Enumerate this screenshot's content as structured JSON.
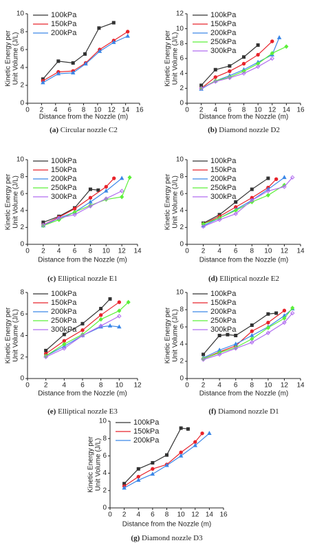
{
  "chart_data": [
    {
      "type": "line",
      "caption_label": "(a)",
      "caption": "Circular nozzle C2",
      "xlabel": "Distance from the Nozzle (m)",
      "ylabel": [
        "Kinetic Energy per",
        "Unit Volume (J/L)"
      ],
      "xlim": [
        0,
        16
      ],
      "xticks": [
        0,
        2,
        4,
        6,
        8,
        10,
        12,
        14,
        16
      ],
      "ylim": [
        0,
        10
      ],
      "yticks": [
        0,
        2,
        4,
        6,
        8,
        10
      ],
      "legend": "upper left",
      "series": [
        {
          "name": "100kPa",
          "color": "#333333",
          "x": [
            2.2,
            4.4,
            6.5,
            8.2,
            10.2,
            12.3
          ],
          "values": [
            2.7,
            4.7,
            4.5,
            5.5,
            8.4,
            9.0
          ]
        },
        {
          "name": "150kPa",
          "color": "#e8232b",
          "x": [
            2.2,
            4.4,
            6.5,
            8.3,
            10.3,
            12.3,
            14.3
          ],
          "values": [
            2.5,
            3.5,
            3.6,
            4.5,
            6.0,
            7.0,
            8.0
          ]
        },
        {
          "name": "200kPa",
          "color": "#3a87e8",
          "x": [
            2.2,
            4.4,
            6.5,
            8.3,
            10.3,
            12.3,
            14.3
          ],
          "values": [
            2.3,
            3.3,
            3.4,
            4.4,
            5.8,
            6.8,
            7.5
          ]
        }
      ]
    },
    {
      "type": "line",
      "caption_label": "(b)",
      "caption": "Diamond nozzle D2",
      "xlabel": "Distance from the Nozzle (m)",
      "ylabel": [
        "Kinetic Energy per",
        "Unit Volume (J/L)"
      ],
      "xlim": [
        0,
        16
      ],
      "xticks": [
        0,
        2,
        4,
        6,
        8,
        10,
        12,
        14,
        16
      ],
      "ylim": [
        0,
        12
      ],
      "yticks": [
        0,
        2,
        4,
        6,
        8,
        10,
        12
      ],
      "legend": "upper left",
      "series": [
        {
          "name": "100kPa",
          "color": "#333333",
          "x": [
            2,
            4,
            6,
            8,
            10
          ],
          "values": [
            2.4,
            4.5,
            5.0,
            6.2,
            7.8
          ]
        },
        {
          "name": "150kPa",
          "color": "#e8232b",
          "x": [
            2,
            4,
            6,
            8,
            10,
            12
          ],
          "values": [
            2.0,
            3.5,
            4.3,
            5.3,
            6.5,
            8.3
          ]
        },
        {
          "name": "200kPa",
          "color": "#3a87e8",
          "x": [
            2,
            4,
            6,
            8,
            10,
            12,
            13
          ],
          "values": [
            1.9,
            3.0,
            3.7,
            4.5,
            5.5,
            6.5,
            8.8
          ]
        },
        {
          "name": "250kPa",
          "color": "#5cf03a",
          "x": [
            2,
            4,
            6,
            8,
            10,
            12,
            14
          ],
          "values": [
            2.0,
            3.0,
            3.5,
            4.3,
            5.3,
            6.7,
            7.6
          ]
        },
        {
          "name": "300kPa",
          "color": "#b06cf0",
          "x": [
            2,
            4,
            6,
            8,
            10,
            12
          ],
          "values": [
            2.0,
            2.9,
            3.4,
            4.0,
            4.9,
            6.0
          ]
        }
      ]
    },
    {
      "type": "line",
      "caption_label": "(c)",
      "caption": "Elliptical nozzle E1",
      "xlabel": "Distance from the Nozzle (m)",
      "ylabel": [
        "Kinetic Energy per",
        "Unit Volume (J/L)"
      ],
      "xlim": [
        0,
        14
      ],
      "xticks": [
        0,
        2,
        4,
        6,
        8,
        10,
        12,
        14
      ],
      "ylim": [
        0,
        10
      ],
      "yticks": [
        0,
        2,
        4,
        6,
        8,
        10
      ],
      "legend": "upper left",
      "series": [
        {
          "name": "100kPa",
          "color": "#333333",
          "x": [
            2,
            4,
            6,
            8,
            9
          ],
          "values": [
            2.6,
            3.3,
            4.3,
            6.5,
            6.4
          ]
        },
        {
          "name": "150kPa",
          "color": "#e8232b",
          "x": [
            2,
            4,
            6,
            8,
            10,
            11
          ],
          "values": [
            2.3,
            3.2,
            4.2,
            5.5,
            6.8,
            7.8
          ]
        },
        {
          "name": "200kPa",
          "color": "#3a87e8",
          "x": [
            2,
            4,
            6,
            8,
            10,
            12
          ],
          "values": [
            2.2,
            3.1,
            3.8,
            5.0,
            6.3,
            7.8
          ]
        },
        {
          "name": "250kPa",
          "color": "#5cf03a",
          "x": [
            2,
            4,
            6,
            8,
            10,
            12,
            13
          ],
          "values": [
            2.2,
            2.9,
            3.8,
            4.6,
            5.3,
            5.6,
            7.9
          ]
        },
        {
          "name": "300kPa",
          "color": "#b06cf0",
          "x": [
            2,
            4,
            6,
            8,
            10,
            12
          ],
          "values": [
            2.3,
            3.1,
            3.5,
            4.5,
            5.4,
            6.3
          ]
        }
      ]
    },
    {
      "type": "line",
      "caption_label": "(d)",
      "caption": "Elliptical nozzle E2",
      "xlabel": "Distance from the Nozzle (m)",
      "ylabel": [
        "Kinetic Energy per",
        "Unit Volume (J/L)"
      ],
      "xlim": [
        0,
        14
      ],
      "xticks": [
        0,
        2,
        4,
        6,
        8,
        10,
        12,
        14
      ],
      "ylim": [
        0,
        10
      ],
      "yticks": [
        0,
        2,
        4,
        6,
        8,
        10
      ],
      "legend": "upper left",
      "series": [
        {
          "name": "100kPa",
          "color": "#333333",
          "x": [
            2,
            4,
            6,
            8,
            10
          ],
          "values": [
            2.5,
            3.5,
            5.0,
            6.5,
            7.8
          ]
        },
        {
          "name": "150kPa",
          "color": "#e8232b",
          "x": [
            2,
            4,
            6,
            8,
            10,
            11
          ],
          "values": [
            2.4,
            3.3,
            4.4,
            5.5,
            6.7,
            7.7
          ]
        },
        {
          "name": "200kPa",
          "color": "#3a87e8",
          "x": [
            2,
            4,
            6,
            8,
            10,
            12
          ],
          "values": [
            2.2,
            3.1,
            4.1,
            5.2,
            6.5,
            7.9
          ]
        },
        {
          "name": "250kPa",
          "color": "#5cf03a",
          "x": [
            2,
            4,
            6,
            8,
            10,
            12
          ],
          "values": [
            2.4,
            3.1,
            4.0,
            5.0,
            5.8,
            7.0
          ]
        },
        {
          "name": "300kPa",
          "color": "#b06cf0",
          "x": [
            2,
            4,
            6,
            8,
            10,
            12,
            13
          ],
          "values": [
            2.1,
            2.9,
            3.6,
            5.2,
            6.3,
            6.8,
            7.9
          ]
        }
      ]
    },
    {
      "type": "line",
      "caption_label": "(e)",
      "caption": "Elliptical nozzle E3",
      "xlabel": "Distance from the Nozzle (m)",
      "ylabel": [
        "Kinetic Energy per",
        "Unit Volume (J/L)"
      ],
      "xlim": [
        0,
        12
      ],
      "xticks": [
        0,
        2,
        4,
        6,
        8,
        10,
        12
      ],
      "ylim": [
        0,
        8
      ],
      "yticks": [
        0,
        2,
        4,
        6,
        8
      ],
      "legend": "upper left",
      "series": [
        {
          "name": "100kPa",
          "color": "#333333",
          "x": [
            2,
            4,
            6,
            8,
            9
          ],
          "values": [
            2.6,
            4.1,
            5.1,
            6.5,
            7.4
          ]
        },
        {
          "name": "150kPa",
          "color": "#e8232b",
          "x": [
            2,
            4,
            6,
            8,
            10
          ],
          "values": [
            2.3,
            3.5,
            4.5,
            5.9,
            7.1
          ]
        },
        {
          "name": "200kPa",
          "color": "#3a87e8",
          "x": [
            2,
            4,
            6,
            8,
            9,
            10
          ],
          "values": [
            2.1,
            3.0,
            4.0,
            4.8,
            4.9,
            4.8
          ]
        },
        {
          "name": "250kPa",
          "color": "#5cf03a",
          "x": [
            2,
            4,
            6,
            8,
            10,
            11
          ],
          "values": [
            2.1,
            3.2,
            4.1,
            5.5,
            6.3,
            7.1
          ]
        },
        {
          "name": "300kPa",
          "color": "#b06cf0",
          "x": [
            2,
            4,
            6,
            8,
            10
          ],
          "values": [
            2.0,
            2.8,
            4.0,
            4.9,
            5.8
          ]
        }
      ]
    },
    {
      "type": "line",
      "caption_label": "(f)",
      "caption": "Diamond nozzle D1",
      "xlabel": "Distance from the Nozzle (m)",
      "ylabel": [
        "Kinetic Energy per",
        "Unit Volume (J/L)"
      ],
      "xlim": [
        0,
        14
      ],
      "xticks": [
        0,
        2,
        4,
        6,
        8,
        10,
        12,
        14
      ],
      "ylim": [
        0,
        10
      ],
      "yticks": [
        0,
        2,
        4,
        6,
        8,
        10
      ],
      "legend": "upper left",
      "series": [
        {
          "name": "100kPa",
          "color": "#333333",
          "x": [
            2,
            4,
            5,
            6,
            8,
            10,
            11
          ],
          "values": [
            2.8,
            5.0,
            5.1,
            5.0,
            6.2,
            7.5,
            7.6
          ]
        },
        {
          "name": "150kPa",
          "color": "#e8232b",
          "x": [
            2,
            4,
            6,
            8,
            10,
            12
          ],
          "values": [
            2.3,
            3.1,
            3.8,
            5.5,
            6.5,
            7.9
          ]
        },
        {
          "name": "200kPa",
          "color": "#3a87e8",
          "x": [
            2,
            4,
            6,
            8,
            10,
            12,
            13
          ],
          "values": [
            2.4,
            3.3,
            4.0,
            5.0,
            6.0,
            7.3,
            8.1
          ]
        },
        {
          "name": "250kPa",
          "color": "#5cf03a",
          "x": [
            2,
            4,
            6,
            8,
            10,
            12,
            13
          ],
          "values": [
            2.3,
            3.0,
            3.6,
            4.6,
            5.9,
            7.0,
            8.2
          ]
        },
        {
          "name": "300kPa",
          "color": "#b06cf0",
          "x": [
            2,
            4,
            6,
            8,
            10,
            12,
            13
          ],
          "values": [
            2.2,
            2.8,
            3.5,
            4.2,
            5.3,
            6.5,
            7.6
          ]
        }
      ]
    },
    {
      "type": "line",
      "caption_label": "(g)",
      "caption": "Diamond nozzle D3",
      "xlabel": "Distance from the Nozzle (m)",
      "ylabel": [
        "Kinetic Energy per",
        "Unit Volume (J/L)"
      ],
      "xlim": [
        0,
        16
      ],
      "xticks": [
        0,
        2,
        4,
        6,
        8,
        10,
        12,
        14,
        16
      ],
      "ylim": [
        0,
        10
      ],
      "yticks": [
        0,
        2,
        4,
        6,
        8,
        10
      ],
      "legend": "upper left",
      "series": [
        {
          "name": "100kPa",
          "color": "#333333",
          "x": [
            2,
            4,
            6,
            8,
            10,
            11
          ],
          "values": [
            2.8,
            4.5,
            5.2,
            6.1,
            9.2,
            9.1
          ]
        },
        {
          "name": "150kPa",
          "color": "#e8232b",
          "x": [
            2,
            4,
            6,
            8,
            10,
            12,
            13
          ],
          "values": [
            2.5,
            3.6,
            4.5,
            5.0,
            6.4,
            7.6,
            8.6
          ]
        },
        {
          "name": "200kPa",
          "color": "#3a87e8",
          "x": [
            2,
            4,
            6,
            8,
            10,
            12,
            14
          ],
          "values": [
            2.3,
            3.2,
            3.9,
            4.9,
            6.0,
            7.2,
            8.6
          ]
        }
      ]
    }
  ]
}
